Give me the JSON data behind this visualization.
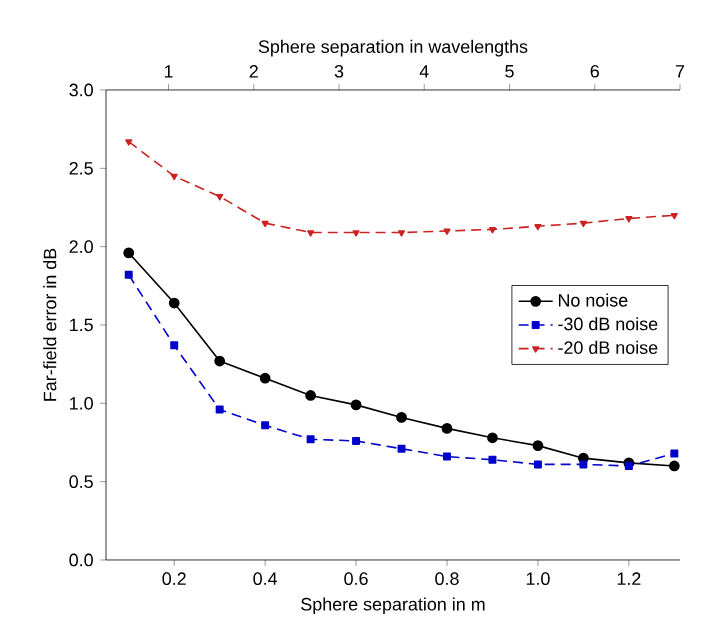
{
  "chart_data": {
    "type": "line",
    "xlabel": "Sphere separation in m",
    "ylabel": "Far-field error in dB",
    "x2label": "Sphere separation in wavelengths",
    "x": [
      0.1,
      0.2,
      0.3,
      0.4,
      0.5,
      0.6,
      0.7,
      0.8,
      0.9,
      1.0,
      1.1,
      1.2,
      1.3
    ],
    "series": [
      {
        "name": "No noise",
        "color": "#000000",
        "marker": "circle",
        "line_style": "solid",
        "values": [
          1.96,
          1.64,
          1.27,
          1.16,
          1.05,
          0.99,
          0.91,
          0.84,
          0.78,
          0.73,
          0.65,
          0.62,
          0.6
        ]
      },
      {
        "name": "-30 dB noise",
        "color": "#0000cc",
        "marker": "square",
        "line_style": "dashed",
        "values": [
          1.82,
          1.37,
          0.96,
          0.86,
          0.77,
          0.76,
          0.71,
          0.66,
          0.64,
          0.61,
          0.61,
          0.6,
          0.68
        ]
      },
      {
        "name": "-20 dB noise",
        "color": "#cc2222",
        "marker": "triangle",
        "line_style": "dashed",
        "values": [
          2.67,
          2.45,
          2.32,
          2.15,
          2.09,
          2.09,
          2.09,
          2.1,
          2.11,
          2.13,
          2.15,
          2.18,
          2.2
        ]
      }
    ],
    "xlim": [
      0.05,
      1.3125
    ],
    "xticks": [
      0.2,
      0.4,
      0.6,
      0.8,
      {
        "value": 1,
        "label": "1.0"
      },
      1.2
    ],
    "x2lim": [
      0.2667,
      7
    ],
    "x2ticks": [
      1,
      2,
      3,
      4,
      5,
      6,
      7
    ],
    "ylim": [
      0,
      3
    ],
    "yticks": [
      {
        "value": 0,
        "label": "0.0"
      },
      0.5,
      {
        "value": 1,
        "label": "1.0"
      },
      1.5,
      {
        "value": 2,
        "label": "2.0"
      },
      2.5,
      {
        "value": 3,
        "label": "3.0"
      }
    ],
    "legend": "right",
    "grid": false
  }
}
